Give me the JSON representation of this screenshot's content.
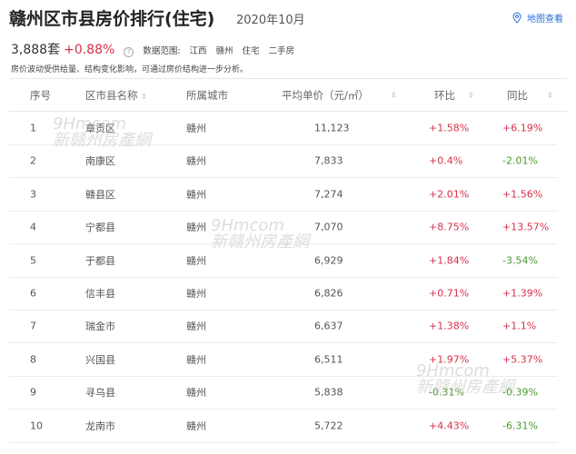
{
  "header": {
    "title": "赣州区市县房价排行(住宅)",
    "date": "2020年10月",
    "map_link": "地图查看"
  },
  "summary": {
    "count": "3,888套",
    "change": "+0.88%",
    "scope_label": "数据范围:",
    "scope": [
      "江西",
      "赣州",
      "住宅",
      "二手房"
    ],
    "note": "房价波动受供给量、结构变化影响，可通过房价结构进一步分析。"
  },
  "table": {
    "columns": [
      "序号",
      "区市县名称",
      "所属城市",
      "平均单价（元/㎡）",
      "环比",
      "同比"
    ],
    "rows": [
      [
        "1",
        "章贡区",
        "赣州",
        "11,123",
        "+1.58%",
        "+6.19%"
      ],
      [
        "2",
        "南康区",
        "赣州",
        "7,833",
        "+0.4%",
        "-2.01%"
      ],
      [
        "3",
        "赣县区",
        "赣州",
        "7,274",
        "+2.01%",
        "+1.56%"
      ],
      [
        "4",
        "宁都县",
        "赣州",
        "7,070",
        "+8.75%",
        "+13.57%"
      ],
      [
        "5",
        "于都县",
        "赣州",
        "6,929",
        "+1.84%",
        "-3.54%"
      ],
      [
        "6",
        "信丰县",
        "赣州",
        "6,826",
        "+0.71%",
        "+1.39%"
      ],
      [
        "7",
        "瑞金市",
        "赣州",
        "6,637",
        "+1.38%",
        "+1.1%"
      ],
      [
        "8",
        "兴国县",
        "赣州",
        "6,511",
        "+1.97%",
        "+5.37%"
      ],
      [
        "9",
        "寻乌县",
        "赣州",
        "5,838",
        "-0.31%",
        "-0.39%"
      ],
      [
        "10",
        "龙南市",
        "赣州",
        "5,722",
        "+4.43%",
        "-6.31%"
      ]
    ]
  },
  "watermark": "新赣州房產網",
  "colors": {
    "up": "#d6304a",
    "down": "#4a9a2e",
    "link": "#2a6fd6"
  }
}
